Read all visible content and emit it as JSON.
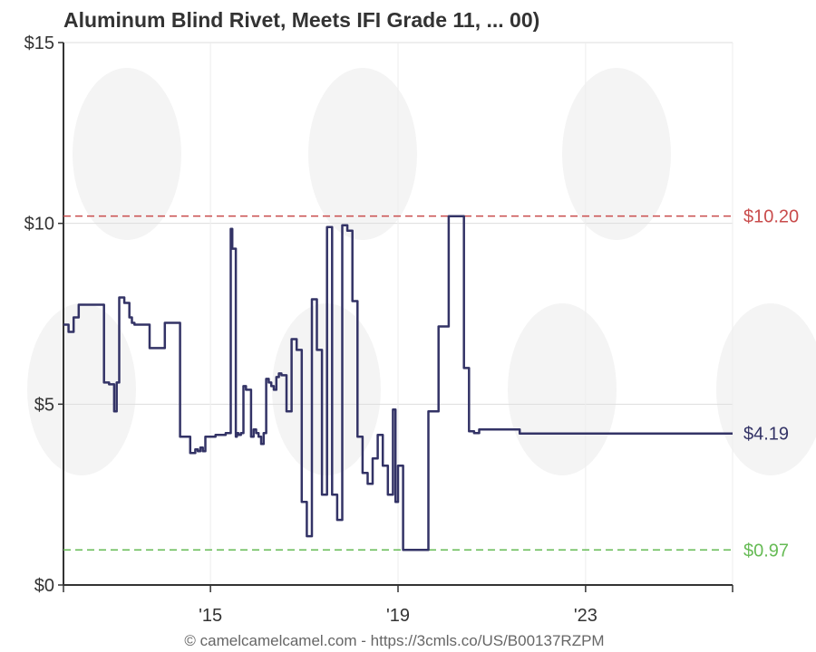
{
  "chart_data": {
    "type": "line",
    "title": "Aluminum Blind Rivet, Meets IFI Grade 11, ... 00)",
    "ylim": [
      0,
      15
    ],
    "y_ticks": [
      {
        "value": 0,
        "label": "$0"
      },
      {
        "value": 5,
        "label": "$5"
      },
      {
        "value": 10,
        "label": "$10"
      },
      {
        "value": 15,
        "label": "$15"
      }
    ],
    "xlim": [
      2013.0,
      2026.2
    ],
    "x_ticks": [
      {
        "value": 2015.9,
        "label": "'15"
      },
      {
        "value": 2019.6,
        "label": "'19"
      },
      {
        "value": 2023.3,
        "label": "'23"
      }
    ],
    "grid": true,
    "reference_lines": [
      {
        "name": "highest",
        "value": 10.2,
        "label": "$10.20",
        "color": "#c94c4c",
        "style": "dashed"
      },
      {
        "name": "lowest",
        "value": 0.97,
        "label": "$0.97",
        "color": "#66bb55",
        "style": "dashed"
      }
    ],
    "current": {
      "value": 4.19,
      "label": "$4.19",
      "color": "#333366"
    },
    "series": [
      {
        "color": "#333366",
        "x": [
          2013.0,
          2013.1,
          2013.2,
          2013.3,
          2013.5,
          2013.7,
          2013.8,
          2013.9,
          2014.0,
          2014.05,
          2014.1,
          2014.2,
          2014.3,
          2014.35,
          2014.4,
          2014.5,
          2014.7,
          2014.8,
          2015.0,
          2015.3,
          2015.5,
          2015.6,
          2015.65,
          2015.7,
          2015.75,
          2015.8,
          2015.85,
          2016.0,
          2016.2,
          2016.3,
          2016.33,
          2016.4,
          2016.42,
          2016.45,
          2016.5,
          2016.55,
          2016.6,
          2016.7,
          2016.75,
          2016.8,
          2016.85,
          2016.9,
          2016.95,
          2017.0,
          2017.05,
          2017.1,
          2017.15,
          2017.2,
          2017.25,
          2017.3,
          2017.4,
          2017.5,
          2017.6,
          2017.7,
          2017.8,
          2017.9,
          2018.0,
          2018.1,
          2018.2,
          2018.3,
          2018.4,
          2018.5,
          2018.6,
          2018.7,
          2018.8,
          2018.9,
          2019.0,
          2019.1,
          2019.2,
          2019.3,
          2019.4,
          2019.5,
          2019.55,
          2019.6,
          2019.7,
          2019.8,
          2019.9,
          2020.0,
          2020.2,
          2020.4,
          2020.6,
          2020.8,
          2020.85,
          2020.9,
          2021.0,
          2021.1,
          2021.2,
          2022.0,
          2023.0,
          2024.0,
          2025.0,
          2026.2
        ],
        "values": [
          7.2,
          7.0,
          7.4,
          7.75,
          7.75,
          7.75,
          5.6,
          5.55,
          4.8,
          5.6,
          7.95,
          7.8,
          7.4,
          7.25,
          7.2,
          7.2,
          6.55,
          6.55,
          7.25,
          4.1,
          3.65,
          3.75,
          3.7,
          3.8,
          3.7,
          4.1,
          4.1,
          4.15,
          4.2,
          9.85,
          9.3,
          4.1,
          4.2,
          4.15,
          4.2,
          5.5,
          5.4,
          4.1,
          4.3,
          4.2,
          4.1,
          3.9,
          4.2,
          5.7,
          5.6,
          5.5,
          5.4,
          5.75,
          5.85,
          5.8,
          4.8,
          6.8,
          6.5,
          2.3,
          1.35,
          7.9,
          6.5,
          2.5,
          9.9,
          2.5,
          1.8,
          9.95,
          9.8,
          7.85,
          4.1,
          3.1,
          2.8,
          3.5,
          4.15,
          3.3,
          2.5,
          4.85,
          2.3,
          3.3,
          0.97,
          0.97,
          0.97,
          0.97,
          4.8,
          7.15,
          10.2,
          10.2,
          10.2,
          6.0,
          4.25,
          4.2,
          4.3,
          4.19,
          4.19,
          4.19,
          4.19,
          4.19
        ]
      }
    ]
  },
  "footer": "© camelcamelcamel.com - https://3cmls.co/US/B00137RZPM"
}
